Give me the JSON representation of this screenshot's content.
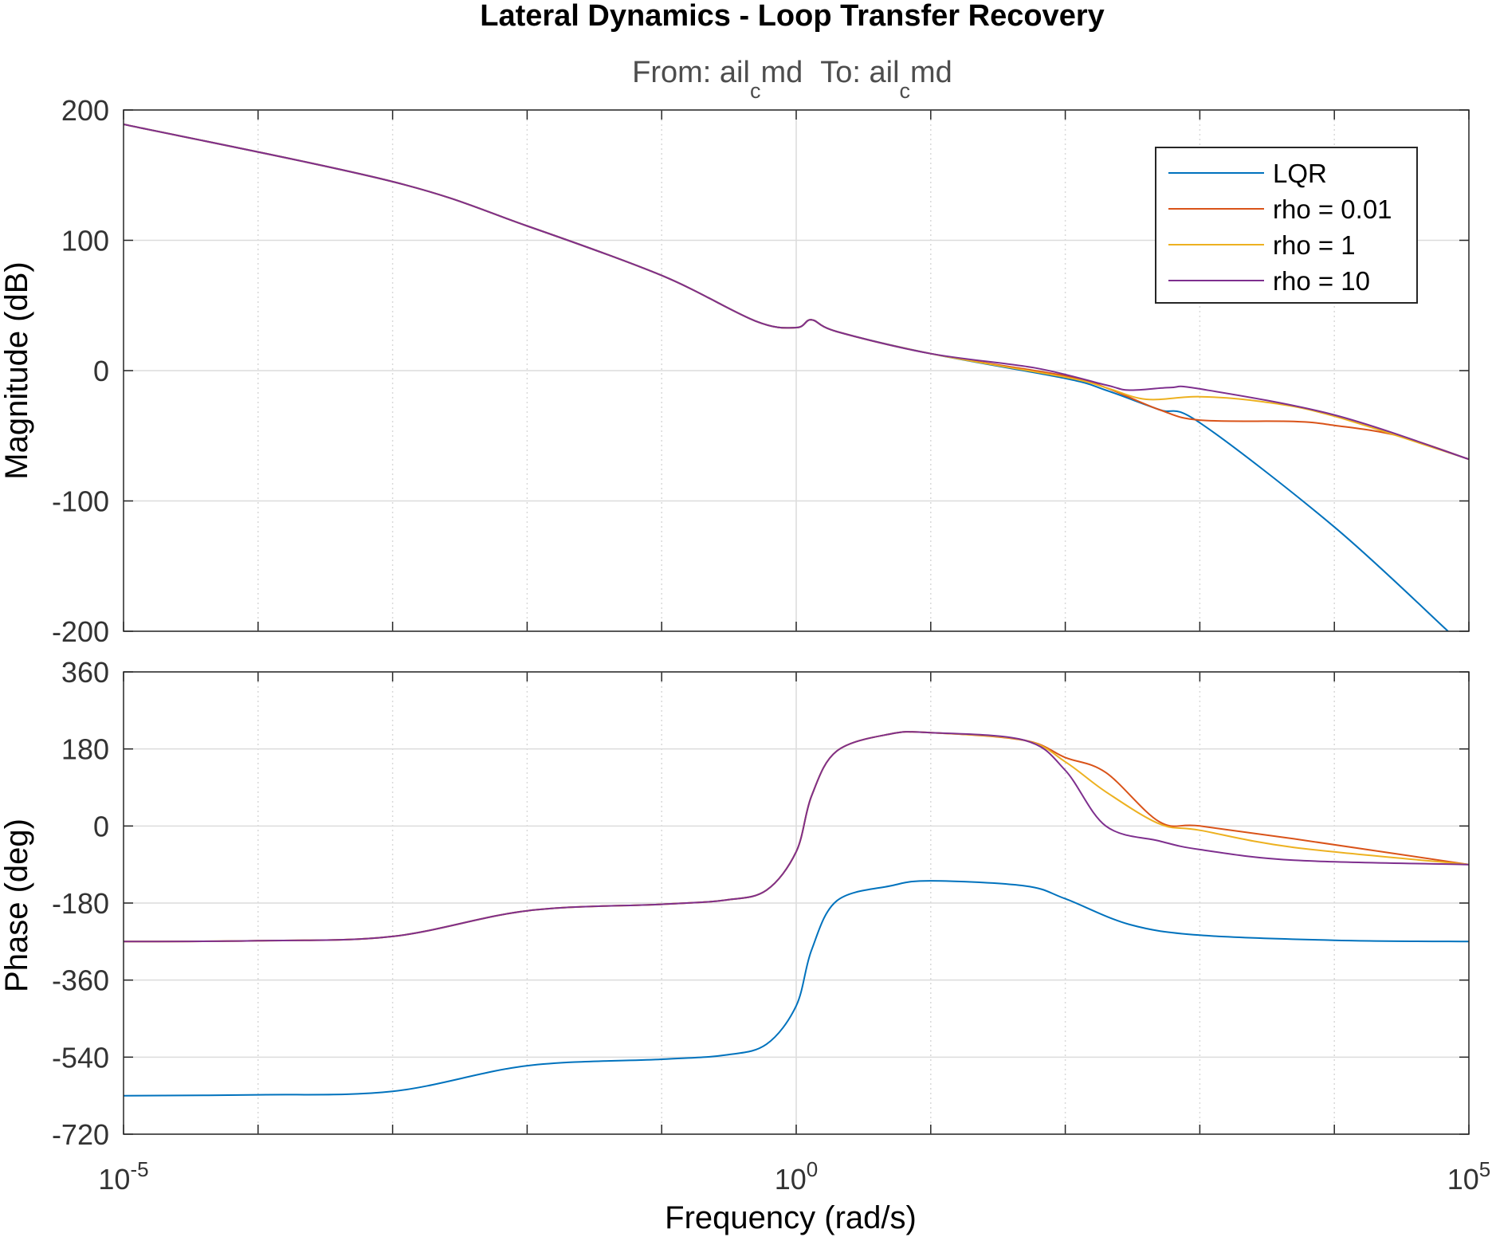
{
  "chart_data": {
    "type": "line",
    "title": "Lateral Dynamics - Loop Transfer Recovery",
    "subtitle": {
      "from_label": "From: ail",
      "from_sub": "c",
      "from_tail": "md",
      "to_label": "To: ail",
      "to_sub": "c",
      "to_tail": "md"
    },
    "xlabel": "Frequency  (rad/s)",
    "xscale": "log",
    "xlim": [
      1e-05,
      100000
    ],
    "x_ticks": [
      {
        "base": "10",
        "exp": "-5"
      },
      {
        "base": "10",
        "exp": "0"
      },
      {
        "base": "10",
        "exp": "5"
      }
    ],
    "grid": true,
    "legend": {
      "placement": "top-right",
      "entries": [
        "LQR",
        "rho = 0.01",
        "rho = 1",
        "rho = 10"
      ]
    },
    "colors": {
      "LQR": "#0072bd",
      "rho = 0.01": "#d95319",
      "rho = 1": "#edb120",
      "rho = 10": "#7e2f8e"
    },
    "panels": [
      {
        "name": "magnitude",
        "ylabel": "Magnitude (dB)",
        "ylim": [
          -200,
          200
        ],
        "y_ticks": [
          "200",
          "100",
          "0",
          "-100",
          "-200"
        ],
        "series": [
          {
            "name": "LQR",
            "x": [
              1e-05,
              0.001,
              0.01,
              0.1,
              0.5,
              1,
              1.3,
              2,
              10,
              100,
              200,
              500,
              1000,
              10000,
              70000
            ],
            "y": [
              189,
              145,
              111,
              73,
              38,
              33,
              39,
              30,
              13,
              -6,
              -15,
              -30,
              -40,
              -120,
              -200
            ]
          },
          {
            "name": "rho = 0.01",
            "x": [
              1e-05,
              0.001,
              0.01,
              0.1,
              0.5,
              1,
              1.3,
              2,
              10,
              100,
              200,
              500,
              1000,
              5000,
              10000,
              30000,
              100000
            ],
            "y": [
              189,
              145,
              111,
              73,
              38,
              33,
              39,
              30,
              13,
              -4,
              -13,
              -30,
              -38,
              -39,
              -42,
              -50,
              -68
            ]
          },
          {
            "name": "rho = 1",
            "x": [
              1e-05,
              0.001,
              0.01,
              0.1,
              0.5,
              1,
              1.3,
              2,
              10,
              100,
              200,
              400,
              1000,
              3000,
              10000,
              100000
            ],
            "y": [
              189,
              145,
              111,
              73,
              38,
              33,
              39,
              30,
              13,
              -5,
              -13,
              -22,
              -20,
              -24,
              -35,
              -68
            ]
          },
          {
            "name": "rho = 10",
            "x": [
              1e-05,
              0.001,
              0.01,
              0.1,
              0.5,
              1,
              1.3,
              2,
              10,
              60,
              200,
              300,
              600,
              1000,
              10000,
              100000
            ],
            "y": [
              189,
              145,
              111,
              73,
              38,
              33,
              39,
              30,
              13,
              2,
              -11,
              -15,
              -13,
              -14,
              -34,
              -68
            ]
          }
        ]
      },
      {
        "name": "phase",
        "ylabel": "Phase (deg)",
        "ylim": [
          -720,
          360
        ],
        "y_ticks": [
          "360",
          "180",
          "0",
          "-180",
          "-360",
          "-540",
          "-720"
        ],
        "series": [
          {
            "name": "LQR",
            "x": [
              1e-05,
              0.0001,
              0.001,
              0.01,
              0.1,
              0.3,
              0.6,
              1,
              1.3,
              2,
              5,
              10,
              50,
              100,
              300,
              1000,
              10000,
              100000
            ],
            "y": [
              -630,
              -628,
              -620,
              -560,
              -545,
              -535,
              -510,
              -420,
              -290,
              -175,
              -140,
              -128,
              -140,
              -170,
              -230,
              -255,
              -267,
              -270
            ]
          },
          {
            "name": "rho = 0.01",
            "x": [
              1e-05,
              0.0001,
              0.001,
              0.01,
              0.1,
              0.3,
              0.6,
              1,
              1.3,
              2,
              5,
              10,
              50,
              100,
              200,
              500,
              1000,
              5000,
              100000
            ],
            "y": [
              -270,
              -268,
              -258,
              -198,
              -183,
              -173,
              -150,
              -60,
              70,
              175,
              215,
              218,
              200,
              160,
              125,
              10,
              0,
              -30,
              -90
            ]
          },
          {
            "name": "rho = 1",
            "x": [
              1e-05,
              0.0001,
              0.001,
              0.01,
              0.1,
              0.3,
              0.6,
              1,
              1.3,
              2,
              5,
              10,
              50,
              100,
              200,
              500,
              1000,
              5000,
              100000
            ],
            "y": [
              -270,
              -268,
              -258,
              -198,
              -183,
              -173,
              -150,
              -60,
              70,
              175,
              215,
              218,
              200,
              150,
              80,
              5,
              -10,
              -50,
              -90
            ]
          },
          {
            "name": "rho = 10",
            "x": [
              1e-05,
              0.0001,
              0.001,
              0.01,
              0.1,
              0.3,
              0.6,
              1,
              1.3,
              2,
              5,
              10,
              50,
              100,
              200,
              500,
              1000,
              5000,
              100000
            ],
            "y": [
              -270,
              -268,
              -258,
              -198,
              -183,
              -173,
              -150,
              -60,
              70,
              175,
              215,
              218,
              200,
              130,
              0,
              -35,
              -55,
              -80,
              -90
            ]
          }
        ]
      }
    ]
  }
}
